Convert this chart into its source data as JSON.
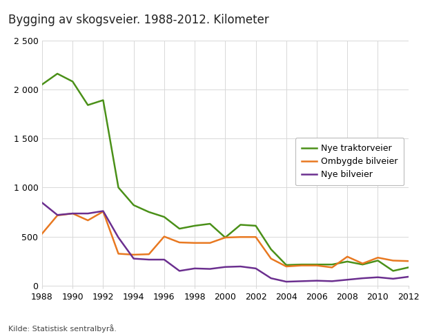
{
  "title": "Bygging av skogsveier. 1988-2012. Kilometer",
  "source": "Kilde: Statistisk sentralbyrå.",
  "years": [
    1988,
    1989,
    1990,
    1991,
    1992,
    1993,
    1994,
    1995,
    1996,
    1997,
    1998,
    1999,
    2000,
    2001,
    2002,
    2003,
    2004,
    2005,
    2006,
    2007,
    2008,
    2009,
    2010,
    2011,
    2012
  ],
  "nye_traktorveier": [
    2050,
    2160,
    2080,
    1840,
    1890,
    1000,
    820,
    750,
    700,
    580,
    610,
    630,
    490,
    620,
    610,
    370,
    210,
    215,
    215,
    215,
    245,
    215,
    255,
    150,
    185
  ],
  "ombygde_bilveier": [
    530,
    715,
    735,
    665,
    755,
    325,
    315,
    320,
    500,
    440,
    435,
    435,
    490,
    495,
    495,
    275,
    195,
    205,
    205,
    185,
    295,
    225,
    285,
    255,
    250
  ],
  "nye_bilveier": [
    845,
    720,
    735,
    735,
    760,
    490,
    275,
    265,
    265,
    150,
    175,
    170,
    190,
    195,
    175,
    75,
    40,
    45,
    50,
    45,
    60,
    75,
    85,
    70,
    90
  ],
  "color_traktorveier": "#4a9018",
  "color_ombygde": "#e87820",
  "color_bilveier": "#6b2f8f",
  "ylim": [
    0,
    2500
  ],
  "yticks": [
    0,
    500,
    1000,
    1500,
    2000,
    2500
  ],
  "ytick_labels": [
    "0",
    "500",
    "1 000",
    "1 500",
    "2 000",
    "2 500"
  ],
  "xtick_years": [
    1988,
    1990,
    1992,
    1994,
    1996,
    1998,
    2000,
    2002,
    2004,
    2006,
    2008,
    2010,
    2012
  ],
  "background_color": "#ffffff",
  "grid_color": "#d8d8d8",
  "legend_labels": [
    "Nye traktorveier",
    "Ombygde bilveier",
    "Nye bilveier"
  ],
  "line_width": 1.8,
  "title_fontsize": 12,
  "tick_fontsize": 9,
  "legend_fontsize": 9,
  "source_fontsize": 8
}
